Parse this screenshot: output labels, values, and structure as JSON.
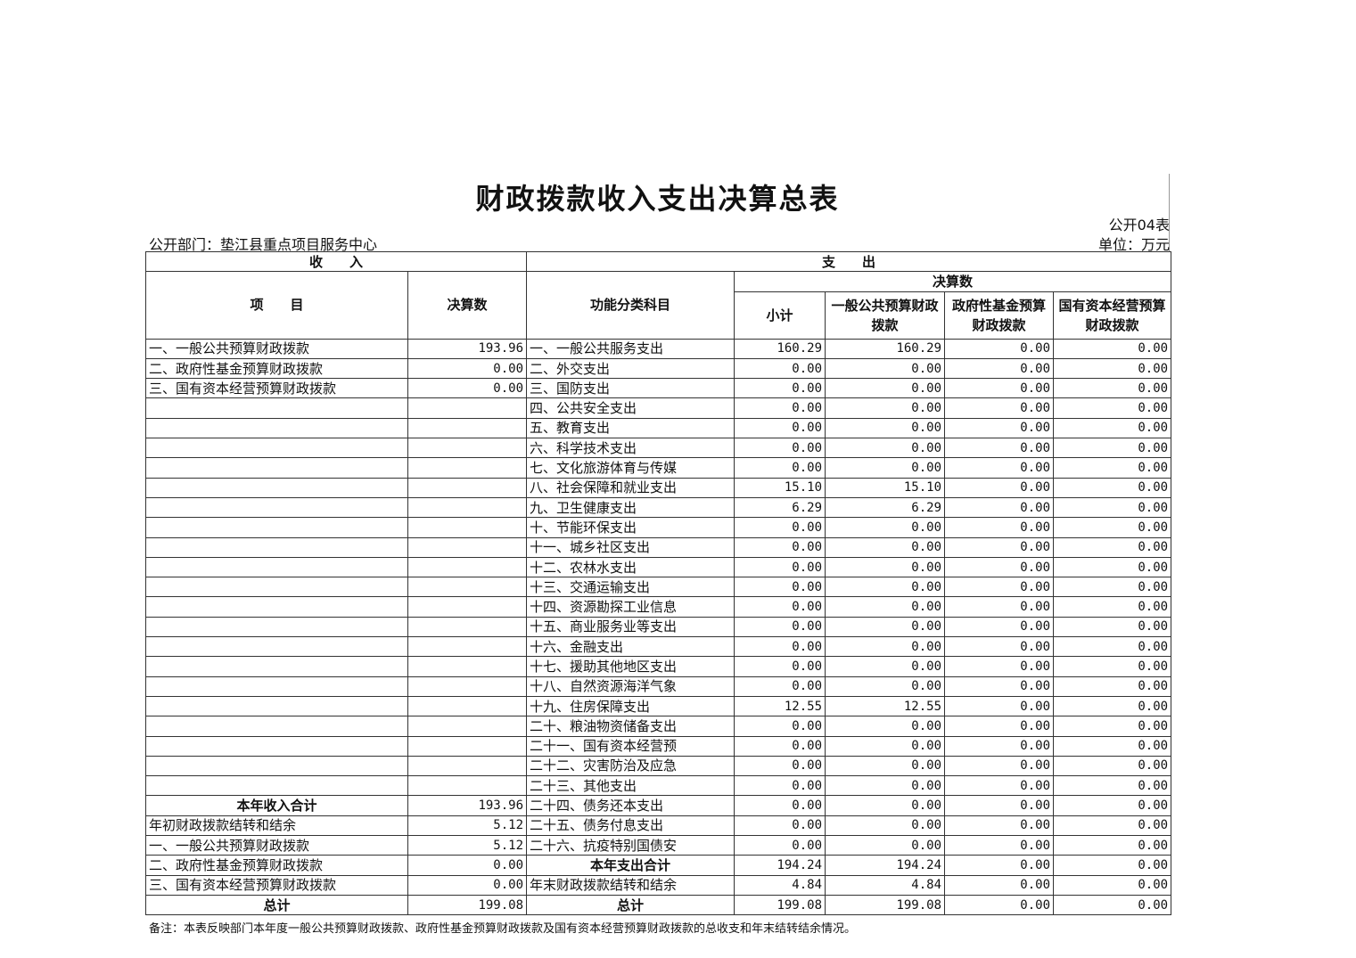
{
  "title": "财政拨款收入支出决算总表",
  "form_no": "公开04表",
  "department": "公开部门：垫江县重点项目服务中心",
  "unit": "单位：万元",
  "headers": {
    "income": "收　　入",
    "expense": "支　　出",
    "final_amount_group": "决算数",
    "item": "项　　目",
    "amount": "决算数",
    "function_category": "功能分类科目",
    "subtotal": "小计",
    "general_budget": "一般公共预算财政拨款",
    "gov_fund": "政府性基金预算财政拨款",
    "state_capital": "国有资本经营预算财政拨款"
  },
  "rows": [
    [
      "一、一般公共预算财政拨款",
      "193.96",
      "一、一般公共服务支出",
      "160.29",
      "160.29",
      "0.00",
      "0.00"
    ],
    [
      "二、政府性基金预算财政拨款",
      "0.00",
      "二、外交支出",
      "0.00",
      "0.00",
      "0.00",
      "0.00"
    ],
    [
      "三、国有资本经营预算财政拨款",
      "0.00",
      "三、国防支出",
      "0.00",
      "0.00",
      "0.00",
      "0.00"
    ],
    [
      "",
      "",
      "四、公共安全支出",
      "0.00",
      "0.00",
      "0.00",
      "0.00"
    ],
    [
      "",
      "",
      "五、教育支出",
      "0.00",
      "0.00",
      "0.00",
      "0.00"
    ],
    [
      "",
      "",
      "六、科学技术支出",
      "0.00",
      "0.00",
      "0.00",
      "0.00"
    ],
    [
      "",
      "",
      "七、文化旅游体育与传媒",
      "0.00",
      "0.00",
      "0.00",
      "0.00"
    ],
    [
      "",
      "",
      "八、社会保障和就业支出",
      "15.10",
      "15.10",
      "0.00",
      "0.00"
    ],
    [
      "",
      "",
      "九、卫生健康支出",
      "6.29",
      "6.29",
      "0.00",
      "0.00"
    ],
    [
      "",
      "",
      "十、节能环保支出",
      "0.00",
      "0.00",
      "0.00",
      "0.00"
    ],
    [
      "",
      "",
      "十一、城乡社区支出",
      "0.00",
      "0.00",
      "0.00",
      "0.00"
    ],
    [
      "",
      "",
      "十二、农林水支出",
      "0.00",
      "0.00",
      "0.00",
      "0.00"
    ],
    [
      "",
      "",
      "十三、交通运输支出",
      "0.00",
      "0.00",
      "0.00",
      "0.00"
    ],
    [
      "",
      "",
      "十四、资源勘探工业信息",
      "0.00",
      "0.00",
      "0.00",
      "0.00"
    ],
    [
      "",
      "",
      "十五、商业服务业等支出",
      "0.00",
      "0.00",
      "0.00",
      "0.00"
    ],
    [
      "",
      "",
      "十六、金融支出",
      "0.00",
      "0.00",
      "0.00",
      "0.00"
    ],
    [
      "",
      "",
      "十七、援助其他地区支出",
      "0.00",
      "0.00",
      "0.00",
      "0.00"
    ],
    [
      "",
      "",
      "十八、自然资源海洋气象",
      "0.00",
      "0.00",
      "0.00",
      "0.00"
    ],
    [
      "",
      "",
      "十九、住房保障支出",
      "12.55",
      "12.55",
      "0.00",
      "0.00"
    ],
    [
      "",
      "",
      "二十、粮油物资储备支出",
      "0.00",
      "0.00",
      "0.00",
      "0.00"
    ],
    [
      "",
      "",
      "二十一、国有资本经营预",
      "0.00",
      "0.00",
      "0.00",
      "0.00"
    ],
    [
      "",
      "",
      "二十二、灾害防治及应急",
      "0.00",
      "0.00",
      "0.00",
      "0.00"
    ],
    [
      "",
      "",
      "二十三、其他支出",
      "0.00",
      "0.00",
      "0.00",
      "0.00"
    ],
    [
      "本年收入合计",
      "193.96",
      "二十四、债务还本支出",
      "0.00",
      "0.00",
      "0.00",
      "0.00"
    ],
    [
      "年初财政拨款结转和结余",
      "5.12",
      "二十五、债务付息支出",
      "0.00",
      "0.00",
      "0.00",
      "0.00"
    ],
    [
      "一、一般公共预算财政拨款",
      "5.12",
      "二十六、抗疫特别国债安",
      "0.00",
      "0.00",
      "0.00",
      "0.00"
    ],
    [
      "二、政府性基金预算财政拨款",
      "0.00",
      "本年支出合计",
      "194.24",
      "194.24",
      "0.00",
      "0.00"
    ],
    [
      "三、国有资本经营预算财政拨款",
      "0.00",
      "年末财政拨款结转和结余",
      "4.84",
      "4.84",
      "0.00",
      "0.00"
    ],
    [
      "总计",
      "199.08",
      "总计",
      "199.08",
      "199.08",
      "0.00",
      "0.00"
    ]
  ],
  "note": "备注：本表反映部门本年度一般公共预算财政拨款、政府性基金预算财政拨款及国有资本经营预算财政拨款的总收支和年末结转结余情况。"
}
